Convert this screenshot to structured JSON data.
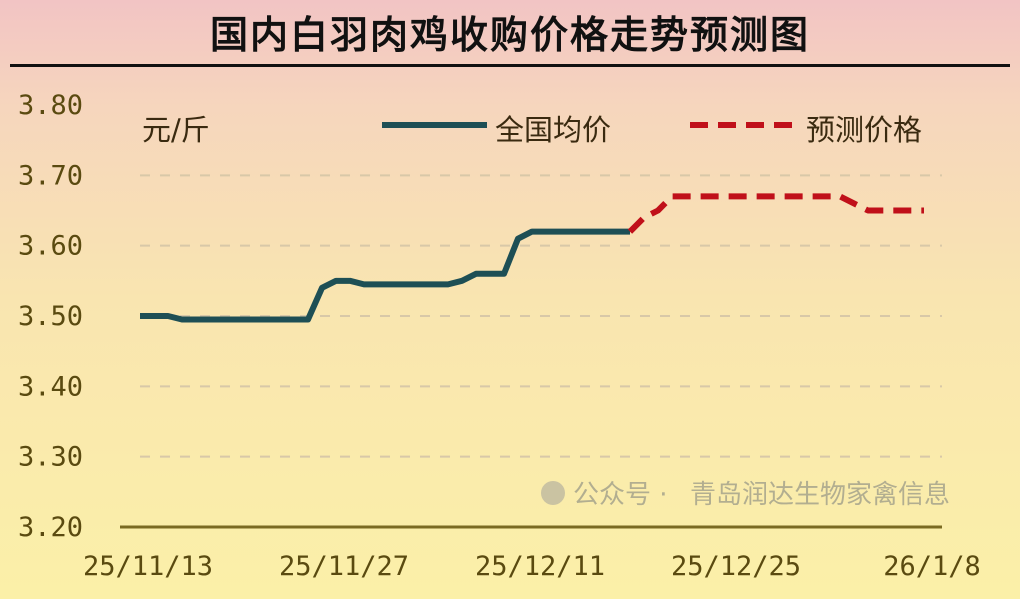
{
  "chart_data": {
    "type": "line",
    "title": "国内白羽肉鸡收购价格走势预测图",
    "unit_label": "元/斤",
    "ylim": [
      3.2,
      3.8
    ],
    "yticks": [
      "3.80",
      "3.70",
      "3.60",
      "3.50",
      "3.40",
      "3.30",
      "3.20"
    ],
    "ytick_values": [
      3.8,
      3.7,
      3.6,
      3.5,
      3.4,
      3.3,
      3.2
    ],
    "xticks": [
      "25/11/13",
      "25/11/27",
      "25/12/11",
      "25/12/25",
      "26/1/8"
    ],
    "x_day_offsets": [
      0,
      14,
      28,
      42,
      56
    ],
    "grid": "horizontal-dashed",
    "legend_position": "top",
    "series": [
      {
        "name": "全国均价",
        "style": "solid",
        "color": "#1e4f55",
        "x": [
          0,
          1,
          2,
          3,
          12,
          13,
          14,
          15,
          16,
          22,
          23,
          24,
          26,
          27,
          28,
          35
        ],
        "values": [
          3.5,
          3.5,
          3.5,
          3.495,
          3.495,
          3.54,
          3.55,
          3.55,
          3.545,
          3.545,
          3.55,
          3.56,
          3.56,
          3.61,
          3.62,
          3.62
        ]
      },
      {
        "name": "预测价格",
        "style": "dashed",
        "color": "#c0101a",
        "x": [
          35,
          36,
          37,
          38,
          49,
          50,
          51,
          52,
          56
        ],
        "values": [
          3.62,
          3.64,
          3.65,
          3.67,
          3.67,
          3.67,
          3.66,
          3.65,
          3.65
        ]
      }
    ]
  },
  "watermark": {
    "prefix": "公众号 · ",
    "text": "青岛润达生物家禽信息"
  }
}
